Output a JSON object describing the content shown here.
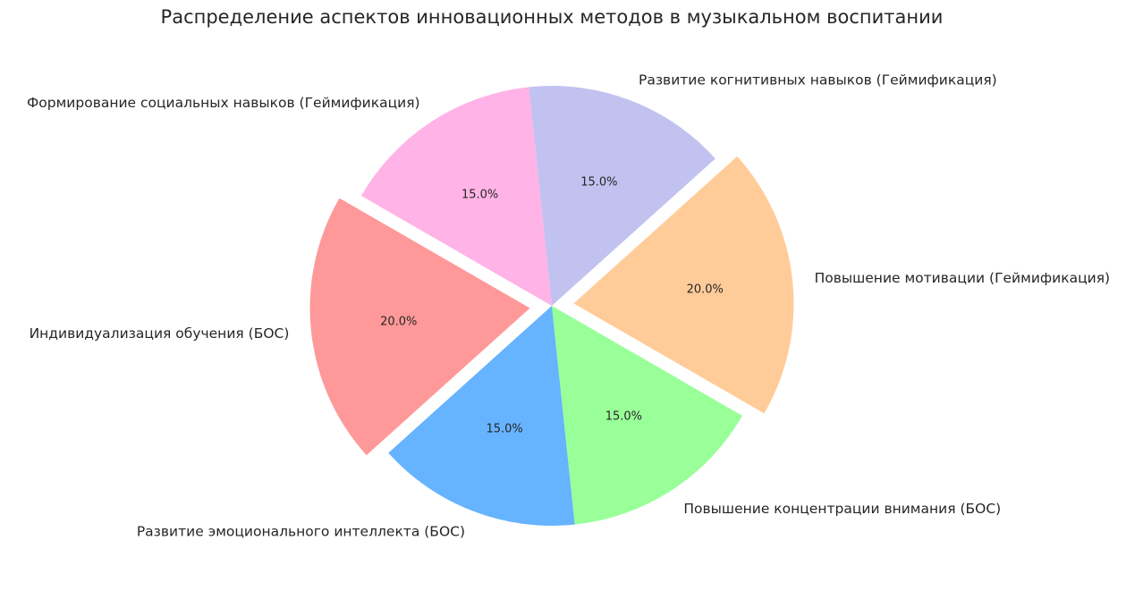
{
  "chart_data": {
    "type": "pie",
    "title": "Распределение аспектов инновационных методов в музыкальном воспитании",
    "slices": [
      {
        "label": "Индивидуализация обучения (БОС)",
        "value": 20.0,
        "pct_label": "20.0%",
        "color": "#ff9999",
        "exploded": true
      },
      {
        "label": "Развитие эмоционального интеллекта (БОС)",
        "value": 15.0,
        "pct_label": "15.0%",
        "color": "#66b3ff",
        "exploded": false
      },
      {
        "label": "Повышение концентрации внимания (БОС)",
        "value": 15.0,
        "pct_label": "15.0%",
        "color": "#99ff99",
        "exploded": false
      },
      {
        "label": "Повышение мотивации (Геймификация)",
        "value": 20.0,
        "pct_label": "20.0%",
        "color": "#ffcc99",
        "exploded": true
      },
      {
        "label": "Развитие когнитивных навыков (Геймификация)",
        "value": 15.0,
        "pct_label": "15.0%",
        "color": "#c2c2f0",
        "exploded": false
      },
      {
        "label": "Формирование социальных навыков (Геймификация)",
        "value": 15.0,
        "pct_label": "15.0%",
        "color": "#ffb3e6",
        "exploded": false
      }
    ]
  }
}
